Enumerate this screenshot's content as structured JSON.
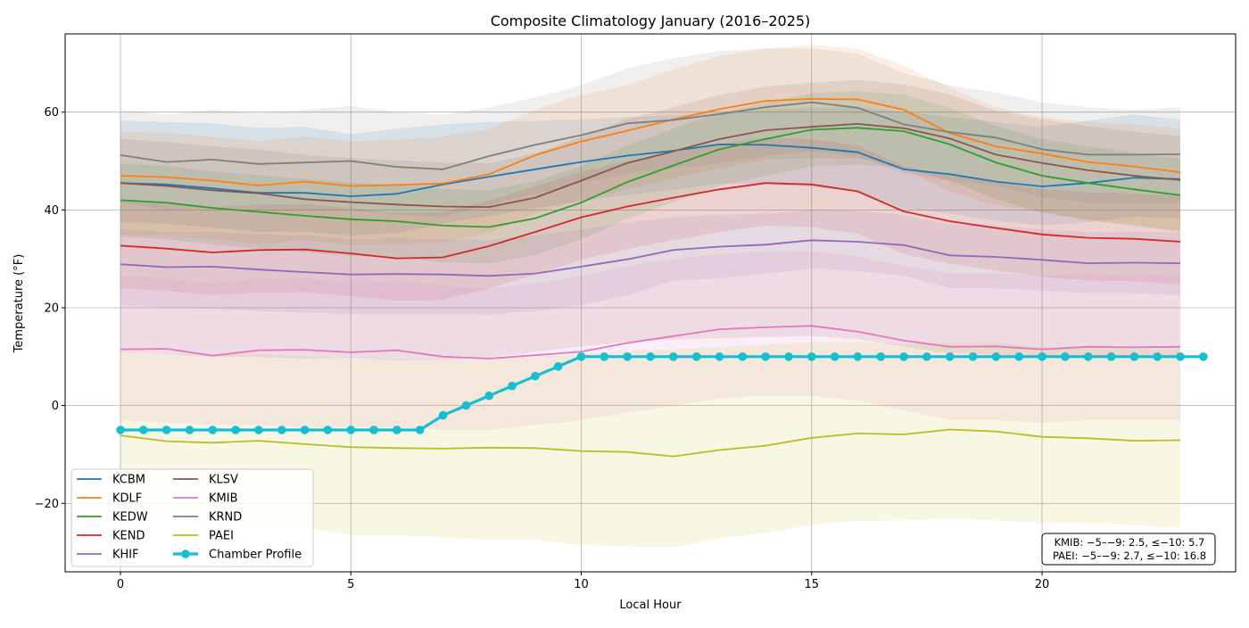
{
  "chart_data": {
    "type": "line",
    "title": "Composite Climatology January (2016–2025)",
    "xlabel": "Local Hour",
    "ylabel": "Temperature (°F)",
    "xlim": [
      -1.2,
      24.2
    ],
    "ylim": [
      -34,
      76
    ],
    "x_ticks": [
      0,
      5,
      10,
      15,
      20
    ],
    "y_ticks": [
      -20,
      0,
      20,
      40,
      60
    ],
    "y_tick_labels": [
      "−20",
      "0",
      "20",
      "40",
      "60"
    ],
    "grid": true,
    "legend_position": "lower-left",
    "x": [
      0,
      1,
      2,
      3,
      4,
      5,
      6,
      7,
      8,
      9,
      10,
      11,
      12,
      13,
      14,
      15,
      16,
      17,
      18,
      19,
      20,
      21,
      22,
      23
    ],
    "series": [
      {
        "name": "KCBM",
        "color": "#1f77b4",
        "values": [
          45.5,
          45.2,
          44.4,
          43.5,
          43.5,
          42.8,
          43.3,
          45.2,
          46.8,
          48.3,
          49.8,
          51.1,
          52.1,
          53.4,
          53.3,
          52.7,
          51.8,
          48.3,
          47.3,
          45.8,
          44.8,
          45.5,
          46.6,
          46.3
        ],
        "band_low": [
          37.5,
          37.2,
          36.4,
          35.5,
          35.5,
          34.8,
          35.3,
          37.2,
          38.8,
          40.3,
          41.8,
          43.1,
          44.1,
          45.4,
          45.3,
          44.7,
          43.8,
          40.3,
          39.3,
          37.8,
          36.8,
          37.5,
          38.6,
          38.3
        ],
        "band_high": [
          58.3,
          58.0,
          57.7,
          56.8,
          57.0,
          55.5,
          56.6,
          57.5,
          58.0,
          58.2,
          58.5,
          59.0,
          59.3,
          60.0,
          60.5,
          61.0,
          61.0,
          60.0,
          59.0,
          58.0,
          57.0,
          58.3,
          59.5,
          58.5
        ]
      },
      {
        "name": "KDLF",
        "color": "#ff7f0e",
        "values": [
          47.0,
          46.7,
          46.0,
          45.0,
          45.8,
          44.9,
          45.1,
          45.4,
          47.3,
          51.2,
          54.0,
          56.2,
          58.5,
          60.6,
          62.3,
          62.7,
          62.6,
          60.5,
          55.7,
          53.0,
          51.5,
          49.8,
          48.9,
          47.7
        ],
        "band_low": [
          35.0,
          34.7,
          34.0,
          33.0,
          33.8,
          32.9,
          33.1,
          33.4,
          35.3,
          39.2,
          42.0,
          44.2,
          46.5,
          48.6,
          50.3,
          50.7,
          50.6,
          48.5,
          43.7,
          41.0,
          39.5,
          37.8,
          36.9,
          35.7
        ],
        "band_high": [
          56.0,
          55.7,
          55.0,
          54.0,
          55.0,
          54.0,
          54.3,
          55.0,
          56.5,
          60.5,
          63.5,
          65.5,
          68.8,
          71.5,
          73.0,
          73.8,
          73.0,
          69.5,
          65.0,
          61.0,
          59.0,
          58.0,
          57.5,
          56.5
        ]
      },
      {
        "name": "KEDW",
        "color": "#2ca02c",
        "values": [
          42.0,
          41.5,
          40.4,
          39.6,
          38.8,
          38.1,
          37.7,
          36.8,
          36.5,
          38.3,
          41.5,
          45.7,
          49.1,
          52.4,
          54.5,
          56.4,
          56.8,
          56.1,
          53.4,
          49.7,
          47.0,
          45.5,
          44.2,
          43.0
        ],
        "band_low": [
          34.5,
          34.0,
          32.9,
          32.1,
          31.3,
          30.6,
          30.2,
          29.3,
          29.0,
          30.8,
          34.0,
          38.2,
          41.6,
          44.9,
          47.0,
          48.9,
          49.3,
          48.6,
          45.9,
          42.2,
          39.5,
          38.0,
          36.7,
          35.5
        ],
        "band_high": [
          49.5,
          49.0,
          47.9,
          47.1,
          46.3,
          45.6,
          45.2,
          44.3,
          44.0,
          45.8,
          49.0,
          53.2,
          56.6,
          59.9,
          62.0,
          63.9,
          64.3,
          63.6,
          60.9,
          57.2,
          54.5,
          53.0,
          51.7,
          50.5
        ]
      },
      {
        "name": "KEND",
        "color": "#d62728",
        "values": [
          32.7,
          32.1,
          31.3,
          31.8,
          31.9,
          31.1,
          30.1,
          30.3,
          32.6,
          35.5,
          38.5,
          40.7,
          42.5,
          44.2,
          45.5,
          45.2,
          43.8,
          39.7,
          37.7,
          36.3,
          35.0,
          34.3,
          34.1,
          33.5
        ],
        "band_low": [
          24.0,
          23.4,
          22.6,
          23.1,
          23.2,
          22.4,
          21.4,
          21.6,
          23.9,
          26.8,
          29.8,
          32.0,
          33.8,
          35.5,
          36.8,
          36.5,
          35.1,
          31.0,
          29.0,
          27.6,
          26.3,
          25.6,
          25.4,
          24.8
        ],
        "band_high": [
          42.0,
          41.4,
          40.6,
          41.1,
          41.2,
          40.4,
          39.4,
          39.6,
          41.9,
          44.8,
          47.8,
          50.0,
          51.8,
          53.5,
          54.8,
          54.5,
          53.1,
          49.0,
          47.0,
          45.6,
          44.3,
          43.6,
          43.4,
          42.8
        ]
      },
      {
        "name": "KHIF",
        "color": "#9467bd",
        "values": [
          28.9,
          28.3,
          28.4,
          27.8,
          27.3,
          26.8,
          26.9,
          26.8,
          26.5,
          27.0,
          28.4,
          29.9,
          31.8,
          32.5,
          32.9,
          33.8,
          33.5,
          32.8,
          30.7,
          30.4,
          29.8,
          29.1,
          29.2,
          29.1
        ],
        "band_low": [
          20.5,
          20.0,
          19.8,
          19.3,
          19.0,
          18.7,
          18.8,
          18.8,
          18.6,
          19.3,
          20.5,
          22.5,
          25.5,
          26.0,
          27.0,
          28.0,
          27.5,
          26.5,
          24.0,
          24.0,
          23.5,
          23.0,
          23.0,
          22.5
        ],
        "band_high": [
          36.0,
          35.5,
          35.5,
          35.0,
          34.8,
          34.0,
          34.2,
          34.0,
          33.8,
          34.8,
          36.0,
          37.5,
          38.5,
          39.0,
          39.2,
          40.0,
          39.8,
          39.0,
          37.0,
          36.8,
          36.0,
          35.5,
          35.6,
          35.4
        ]
      },
      {
        "name": "KLSV",
        "color": "#8c564b",
        "values": [
          45.5,
          44.9,
          44.0,
          43.4,
          42.2,
          41.6,
          41.1,
          40.7,
          40.6,
          42.5,
          46.0,
          49.6,
          52.0,
          54.5,
          56.3,
          57.0,
          57.6,
          56.7,
          54.6,
          51.3,
          49.6,
          48.1,
          47.0,
          46.1
        ],
        "band_low": [
          11.0,
          10.5,
          10.0,
          9.9,
          9.6,
          9.7,
          9.2,
          9.4,
          9.8,
          11.0,
          12.0,
          13.0,
          13.5,
          13.8,
          14.0,
          14.2,
          13.6,
          12.0,
          10.7,
          10.4,
          10.0,
          10.3,
          10.0,
          10.0
        ],
        "band_high": [
          54.5,
          53.9,
          53.0,
          52.4,
          51.2,
          50.6,
          50.1,
          49.7,
          49.6,
          51.5,
          55.0,
          58.6,
          61.0,
          63.5,
          65.3,
          66.0,
          66.6,
          65.7,
          63.6,
          60.3,
          58.6,
          57.1,
          56.0,
          55.1
        ]
      },
      {
        "name": "KMIB",
        "color": "#e377c2",
        "values": [
          11.5,
          11.6,
          10.2,
          11.3,
          11.4,
          10.9,
          11.3,
          10.0,
          9.6,
          10.3,
          11.0,
          12.8,
          14.2,
          15.6,
          16.0,
          16.3,
          15.1,
          13.3,
          12.0,
          12.1,
          11.5,
          12.0,
          11.9,
          12.0
        ],
        "band_low": [
          -3.0,
          -3.5,
          -4.0,
          -4.0,
          -4.5,
          -4.5,
          -4.5,
          -5.0,
          -5.0,
          -4.0,
          -3.0,
          -1.5,
          0.0,
          1.5,
          2.0,
          2.0,
          1.0,
          -1.0,
          -3.0,
          -3.0,
          -3.5,
          -3.0,
          -3.0,
          -3.0
        ],
        "band_high": [
          26.5,
          26.0,
          25.0,
          26.0,
          26.0,
          25.0,
          25.5,
          24.5,
          24.0,
          25.0,
          26.5,
          28.5,
          30.0,
          31.0,
          31.5,
          31.5,
          30.5,
          28.5,
          27.0,
          27.0,
          26.5,
          27.0,
          26.5,
          27.0
        ]
      },
      {
        "name": "KRND",
        "color": "#7f7f7f",
        "values": [
          51.2,
          49.8,
          50.3,
          49.4,
          49.7,
          50.0,
          48.8,
          48.3,
          51.0,
          53.3,
          55.3,
          57.7,
          58.4,
          59.6,
          61.0,
          62.0,
          60.9,
          57.5,
          55.9,
          54.8,
          52.4,
          51.3,
          51.3,
          51.4
        ],
        "band_low": [
          41.5,
          40.0,
          40.5,
          39.5,
          40.0,
          40.0,
          39.0,
          38.5,
          41.0,
          43.3,
          45.5,
          47.5,
          48.5,
          49.5,
          51.0,
          52.0,
          51.0,
          47.5,
          46.0,
          45.0,
          42.5,
          41.5,
          41.5,
          41.5
        ],
        "band_high": [
          60.5,
          59.5,
          60.5,
          59.8,
          60.5,
          61.3,
          60.0,
          59.5,
          61.0,
          63.0,
          65.5,
          69.0,
          71.0,
          72.5,
          73.0,
          73.0,
          72.0,
          68.0,
          65.5,
          64.0,
          62.0,
          61.0,
          60.5,
          61.0
        ]
      },
      {
        "name": "PAEI",
        "color": "#bcbd22",
        "values": [
          -6.1,
          -7.3,
          -7.6,
          -7.2,
          -7.9,
          -8.5,
          -8.7,
          -8.8,
          -8.6,
          -8.7,
          -9.3,
          -9.5,
          -10.4,
          -9.1,
          -8.2,
          -6.6,
          -5.7,
          -5.9,
          -4.9,
          -5.3,
          -6.4,
          -6.7,
          -7.2,
          -7.1
        ],
        "band_low": [
          -22.0,
          -23.0,
          -24.0,
          -24.0,
          -25.0,
          -26.5,
          -26.5,
          -27.0,
          -27.5,
          -27.5,
          -28.5,
          -28.8,
          -29.0,
          -27.2,
          -26.0,
          -24.4,
          -23.6,
          -23.5,
          -23.0,
          -23.5,
          -24.0,
          -24.0,
          -24.5,
          -25.0
        ],
        "band_high": [
          11.0,
          10.5,
          10.5,
          10.5,
          10.0,
          9.6,
          9.4,
          9.5,
          9.8,
          10.0,
          10.5,
          11.0,
          11.5,
          12.0,
          12.5,
          13.0,
          13.0,
          12.5,
          13.0,
          12.8,
          12.0,
          12.0,
          11.5,
          11.5
        ]
      }
    ],
    "chamber_profile": {
      "name": "Chamber Profile",
      "color": "#17becf",
      "x": [
        0,
        0.5,
        1,
        1.5,
        2,
        2.5,
        3,
        3.5,
        4,
        4.5,
        5,
        5.5,
        6,
        6.5,
        7,
        7.5,
        8,
        8.5,
        9,
        9.5,
        10,
        10.5,
        11,
        11.5,
        12,
        12.5,
        13,
        13.5,
        14,
        14.5,
        15,
        15.5,
        16,
        16.5,
        17,
        17.5,
        18,
        18.5,
        19,
        19.5,
        20,
        20.5,
        21,
        21.5,
        22,
        22.5,
        23,
        23.5
      ],
      "values": [
        -5,
        -5,
        -5,
        -5,
        -5,
        -5,
        -5,
        -5,
        -5,
        -5,
        -5,
        -5,
        -5,
        -5,
        -2,
        0,
        2,
        4,
        6,
        8,
        10,
        10,
        10,
        10,
        10,
        10,
        10,
        10,
        10,
        10,
        10,
        10,
        10,
        10,
        10,
        10,
        10,
        10,
        10,
        10,
        10,
        10,
        10,
        10,
        10,
        10,
        10,
        10
      ]
    },
    "annotation": {
      "line1": "KMIB: −5–−9: 2.5, ≤−10: 5.7",
      "line2": "PAEI: −5–−9: 2.7, ≤−10: 16.8"
    }
  }
}
